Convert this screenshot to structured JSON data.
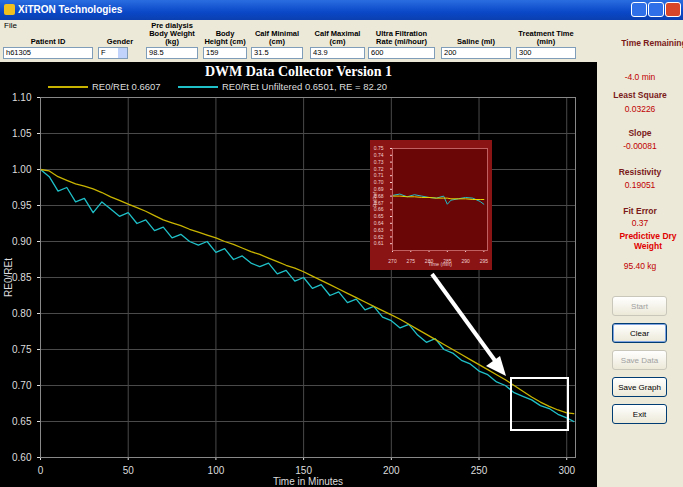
{
  "window": {
    "title": "XiTRON Technologies",
    "menu": [
      "File"
    ]
  },
  "form": {
    "fields": [
      {
        "label": "Patient ID",
        "value": "h61305"
      },
      {
        "label": "Gender",
        "value": "F"
      },
      {
        "label": "Pre dialysis Body Weight (kg)",
        "value": "98.5"
      },
      {
        "label": "Body Height (cm)",
        "value": "159"
      },
      {
        "label": "Calf Minimal (cm)",
        "value": "31.5"
      },
      {
        "label": "Calf Maximal (cm)",
        "value": "43.9"
      },
      {
        "label": "Ultra Filtration Rate (ml/hour)",
        "value": "600"
      },
      {
        "label": "Saline (ml)",
        "value": "200"
      },
      {
        "label": "Treatment Time (min)",
        "value": "300"
      }
    ]
  },
  "side_panel": {
    "readouts": [
      {
        "label": "Time Remaining",
        "value": "-4.0 min"
      },
      {
        "label": "Least Square",
        "value": "0.03226"
      },
      {
        "label": "Slope",
        "value": "-0.00081"
      },
      {
        "label": "Resistivity",
        "value": "0.19051"
      },
      {
        "label": "Fit Error",
        "value": "0.37"
      },
      {
        "label": "Predictive Dry Weight",
        "value": "95.40 kg"
      }
    ],
    "buttons": [
      {
        "label": "Start",
        "enabled": false
      },
      {
        "label": "Clear",
        "enabled": true
      },
      {
        "label": "Save Data",
        "enabled": false
      },
      {
        "label": "Save Graph",
        "enabled": true
      },
      {
        "label": "Exit",
        "enabled": true
      }
    ]
  },
  "chart_data": [
    {
      "type": "line",
      "title": "DWM Data Collector Version 1",
      "x_label": "Time in Minutes",
      "y_label": "RE0/REt",
      "x": [
        0,
        5,
        10,
        15,
        20,
        25,
        30,
        35,
        40,
        45,
        50,
        55,
        60,
        65,
        70,
        75,
        80,
        85,
        90,
        95,
        100,
        105,
        110,
        115,
        120,
        125,
        130,
        135,
        140,
        145,
        150,
        155,
        160,
        165,
        170,
        175,
        180,
        185,
        190,
        195,
        200,
        205,
        210,
        215,
        220,
        225,
        230,
        235,
        240,
        245,
        250,
        255,
        260,
        265,
        270,
        275,
        280,
        285,
        290,
        295,
        300,
        304
      ],
      "series": [
        {
          "name": "RE0/REt 0.6607",
          "color": "#c8b400",
          "values": [
            1.0,
            0.998,
            0.99,
            0.985,
            0.98,
            0.977,
            0.973,
            0.968,
            0.962,
            0.957,
            0.952,
            0.947,
            0.942,
            0.936,
            0.93,
            0.926,
            0.922,
            0.917,
            0.913,
            0.909,
            0.905,
            0.9,
            0.896,
            0.891,
            0.886,
            0.882,
            0.877,
            0.872,
            0.867,
            0.863,
            0.858,
            0.852,
            0.846,
            0.84,
            0.834,
            0.828,
            0.822,
            0.816,
            0.81,
            0.804,
            0.798,
            0.792,
            0.785,
            0.778,
            0.771,
            0.764,
            0.757,
            0.75,
            0.743,
            0.736,
            0.729,
            0.722,
            0.715,
            0.708,
            0.7,
            0.692,
            0.684,
            0.677,
            0.671,
            0.666,
            0.662,
            0.661
          ]
        },
        {
          "name": "RE0/REt Unfiltered 0.6501, RE = 82.20",
          "color": "#1fc0c8",
          "values": [
            1.0,
            0.99,
            0.97,
            0.975,
            0.955,
            0.96,
            0.94,
            0.955,
            0.945,
            0.935,
            0.94,
            0.925,
            0.93,
            0.915,
            0.92,
            0.905,
            0.91,
            0.9,
            0.895,
            0.9,
            0.885,
            0.89,
            0.875,
            0.88,
            0.87,
            0.865,
            0.87,
            0.855,
            0.86,
            0.845,
            0.85,
            0.835,
            0.84,
            0.825,
            0.83,
            0.815,
            0.82,
            0.805,
            0.81,
            0.795,
            0.79,
            0.78,
            0.785,
            0.77,
            0.76,
            0.765,
            0.75,
            0.745,
            0.735,
            0.73,
            0.72,
            0.715,
            0.705,
            0.7,
            0.69,
            0.685,
            0.68,
            0.672,
            0.668,
            0.66,
            0.655,
            0.65
          ]
        }
      ],
      "xlim": [
        0,
        305
      ],
      "ylim": [
        0.6,
        1.1
      ],
      "xticks": [
        0,
        50,
        100,
        150,
        200,
        250,
        300
      ],
      "yticks": [
        {
          "value": 0.6,
          "label": "0.60"
        },
        {
          "value": 0.65,
          "label": "0.65"
        },
        {
          "value": 0.7,
          "label": "0.70"
        },
        {
          "value": 0.75,
          "label": "0.75"
        },
        {
          "value": 0.8,
          "label": "0.80"
        },
        {
          "value": 0.85,
          "label": "0.85"
        },
        {
          "value": 0.9,
          "label": "0.90"
        },
        {
          "value": 0.95,
          "label": "0.95"
        },
        {
          "value": 1.0,
          "label": "1.00"
        },
        {
          "value": 1.05,
          "label": "1.05"
        },
        {
          "value": 1.1,
          "label": "1.10"
        }
      ],
      "grid": true,
      "legend": "top-left"
    },
    {
      "type": "line",
      "x_label": "Time (min)",
      "y_label": "RelRef",
      "x": [
        270,
        272,
        274,
        276,
        278,
        280,
        282,
        284,
        285,
        286,
        288,
        290,
        292,
        294,
        295
      ],
      "series": [
        {
          "color": "#e8d400",
          "values": [
            0.68,
            0.68,
            0.679,
            0.679,
            0.678,
            0.678,
            0.677,
            0.677,
            0.677,
            0.676,
            0.676,
            0.676,
            0.675,
            0.675,
            0.675
          ]
        },
        {
          "color": "#1fc0c8",
          "values": [
            0.681,
            0.683,
            0.679,
            0.682,
            0.68,
            0.678,
            0.677,
            0.68,
            0.668,
            0.674,
            0.676,
            0.678,
            0.677,
            0.672,
            0.668
          ]
        }
      ],
      "xlim": [
        270,
        296
      ],
      "ylim": [
        0.6,
        0.75
      ],
      "xticks": [
        270,
        275,
        280,
        285,
        290,
        295
      ],
      "yticks": [
        {
          "value": 0.61,
          "label": "0.61"
        },
        {
          "value": 0.62,
          "label": "0.62"
        },
        {
          "value": 0.63,
          "label": "0.63"
        },
        {
          "value": 0.64,
          "label": "0.64"
        },
        {
          "value": 0.65,
          "label": "0.65"
        },
        {
          "value": 0.66,
          "label": "0.66"
        },
        {
          "value": 0.67,
          "label": "0.67"
        },
        {
          "value": 0.68,
          "label": "0.68"
        },
        {
          "value": 0.69,
          "label": "0.69"
        },
        {
          "value": 0.7,
          "label": "0.70"
        },
        {
          "value": 0.71,
          "label": "0.71"
        },
        {
          "value": 0.72,
          "label": "0.72"
        },
        {
          "value": 0.73,
          "label": "0.73"
        },
        {
          "value": 0.74,
          "label": "0.74"
        },
        {
          "value": 0.75,
          "label": "0.75"
        }
      ],
      "grid": false
    }
  ]
}
